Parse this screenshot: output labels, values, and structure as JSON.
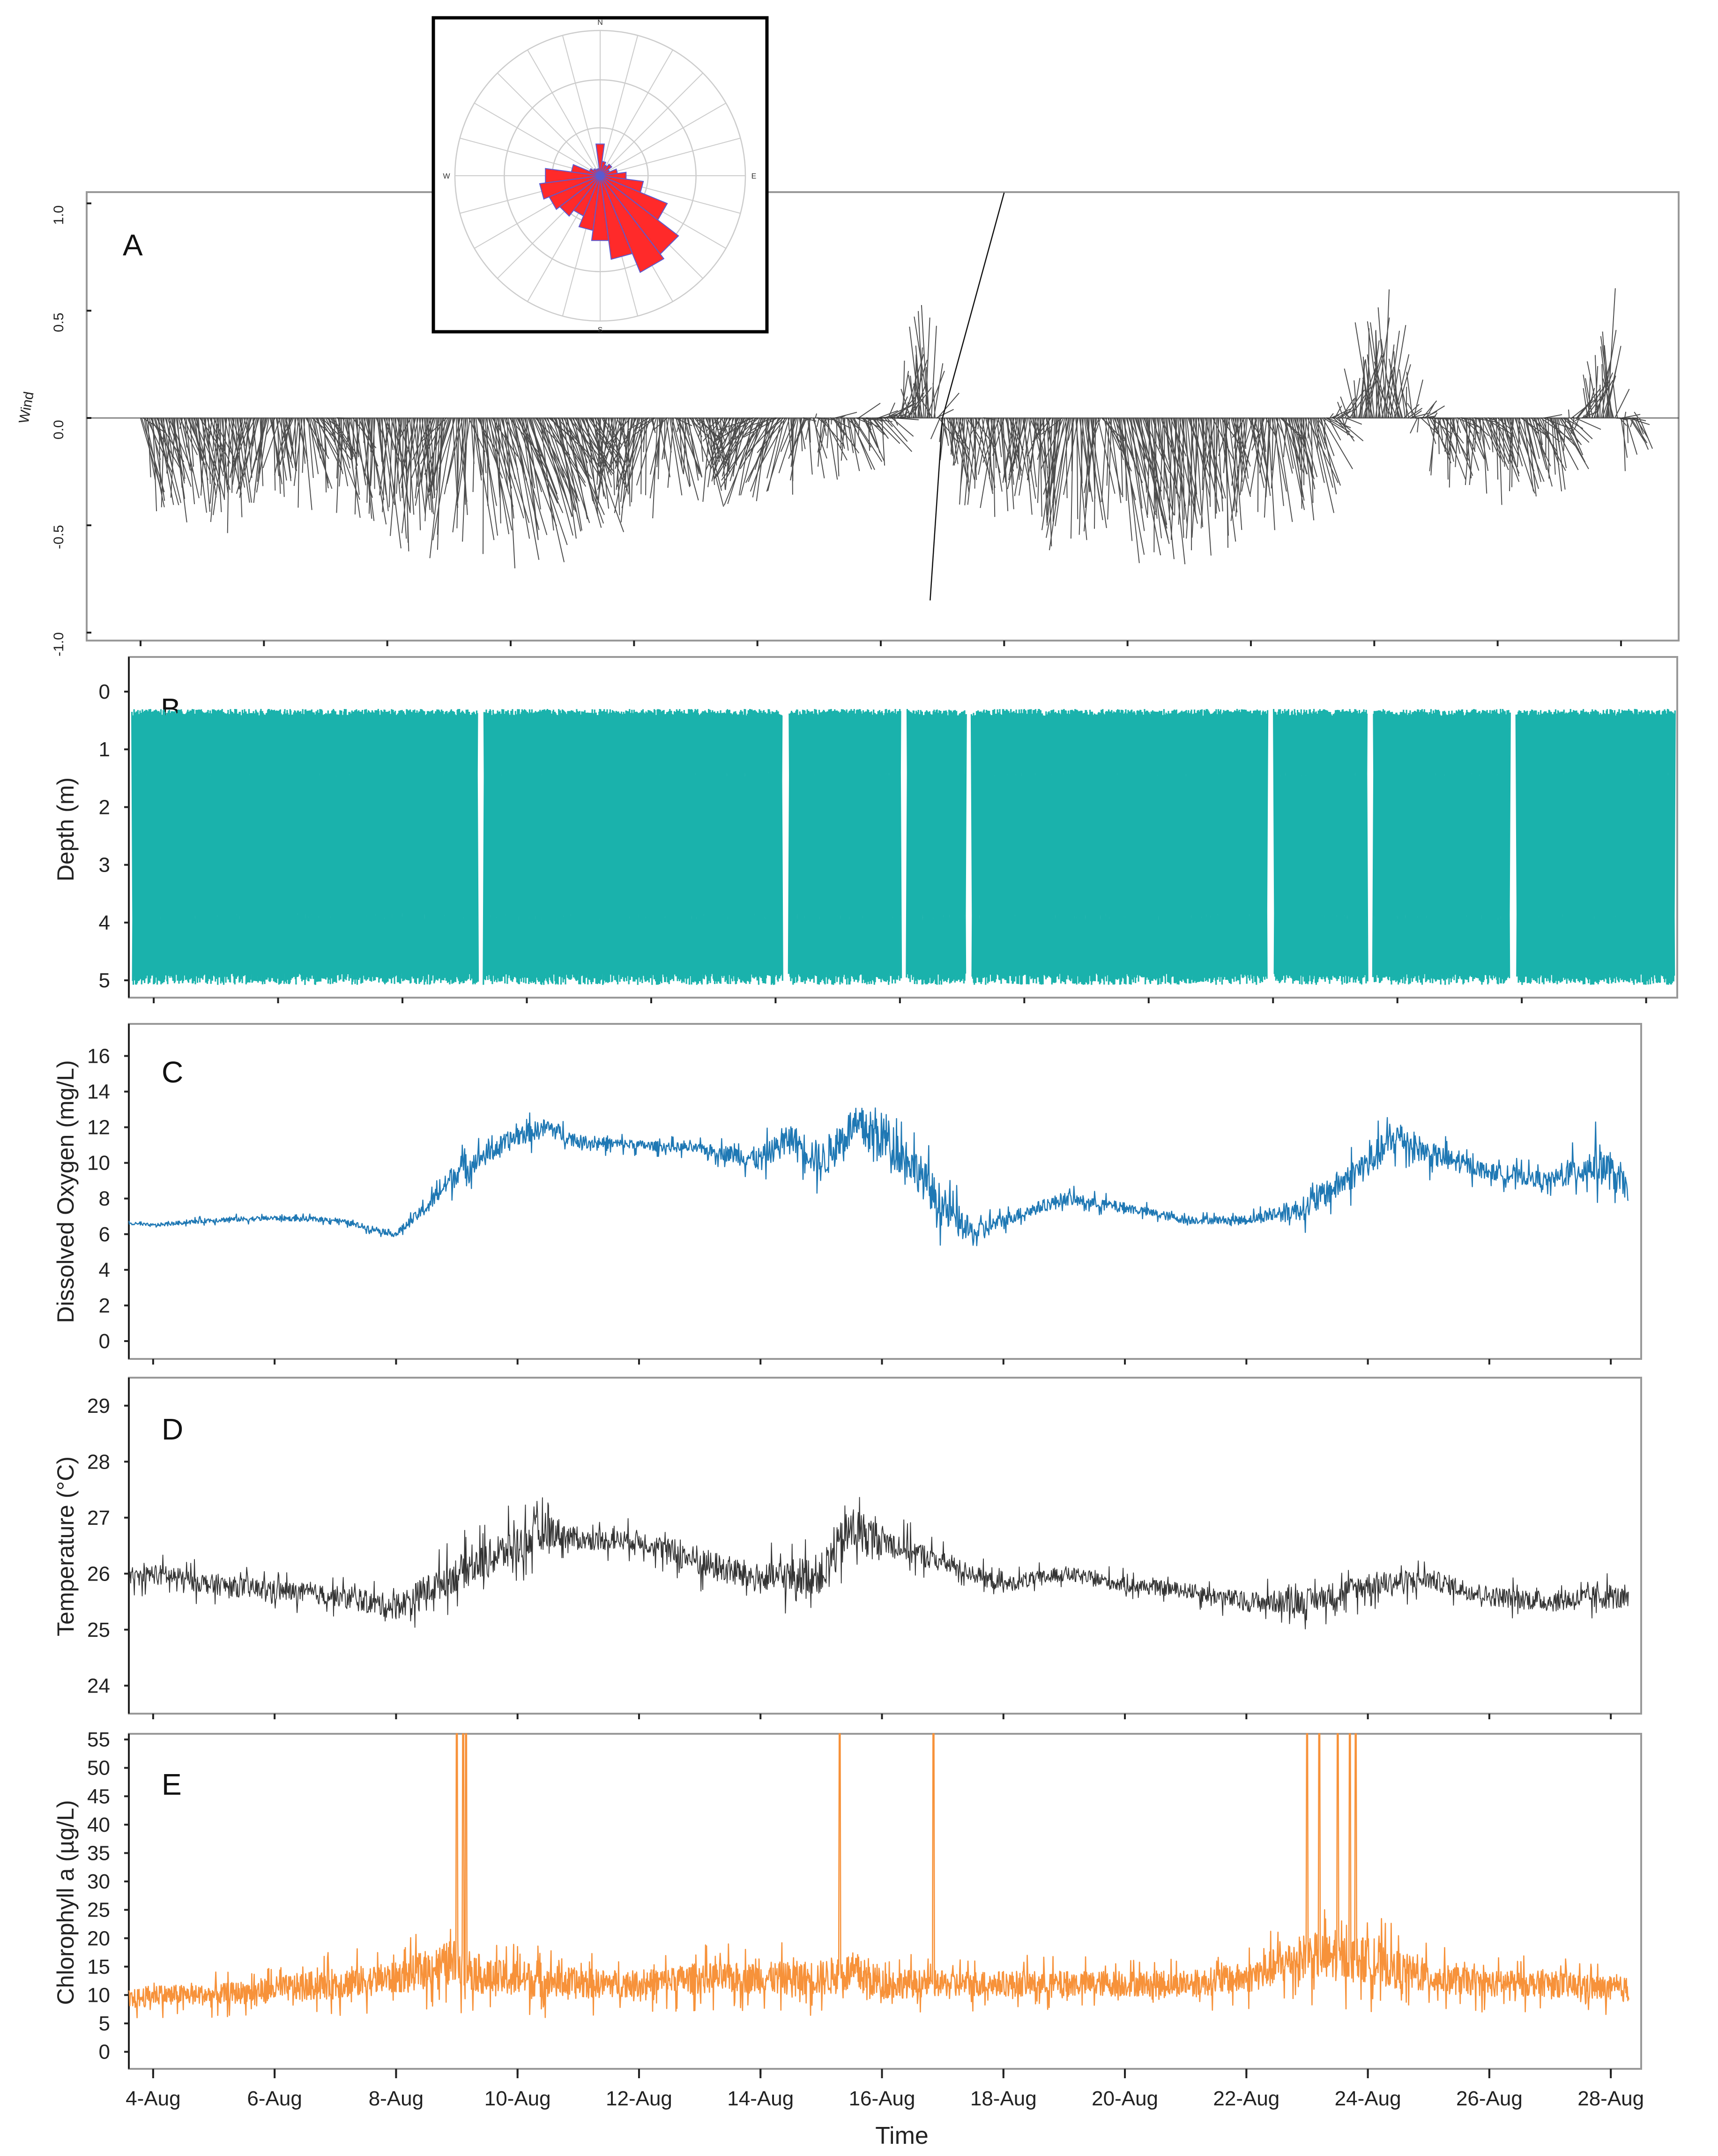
{
  "colors": {
    "depth": "#1ab2ac",
    "oxygen": "#1f78b4",
    "temperature": "#333333",
    "chlorophyll": "#f7923a",
    "wind": "#111111",
    "rose_fill": "#ff2a2a",
    "rose_edge": "#5a5ad0"
  },
  "x_axis": {
    "label": "Time",
    "ticks": [
      "4-Aug",
      "6-Aug",
      "8-Aug",
      "10-Aug",
      "12-Aug",
      "14-Aug",
      "16-Aug",
      "18-Aug",
      "20-Aug",
      "22-Aug",
      "24-Aug",
      "26-Aug",
      "28-Aug"
    ],
    "tick_days": [
      4,
      6,
      8,
      10,
      12,
      14,
      16,
      18,
      20,
      22,
      24,
      26,
      28
    ],
    "range_days": [
      3.6,
      28.5
    ]
  },
  "chart_data": [
    {
      "panel": "A",
      "type": "vector",
      "title": "",
      "ylabel": "Wind",
      "ylim": [
        -1.0,
        1.0
      ],
      "yticks": [
        -1.0,
        -0.5,
        0.0,
        0.5,
        1.0
      ],
      "ytick_labels": [
        "-1.0",
        "-0.5",
        "0.0",
        "0.5",
        "1.0"
      ],
      "x": [
        4,
        5,
        6,
        7,
        8,
        9,
        10,
        11,
        12,
        13,
        14,
        15,
        16,
        16.8,
        17,
        18,
        19,
        20,
        21,
        22,
        23,
        24,
        24.2,
        25,
        26,
        27,
        27.8,
        28,
        28.3
      ],
      "u": [
        0.1,
        0.05,
        -0.05,
        0.1,
        0.0,
        -0.05,
        0.15,
        0.2,
        -0.1,
        0.1,
        -0.2,
        0.05,
        0.1,
        0.0,
        0.05,
        0.0,
        -0.05,
        0.1,
        0.05,
        0.0,
        0.1,
        0.0,
        0.0,
        0.05,
        0.05,
        0.1,
        0.0,
        0.05,
        0.05
      ],
      "v": [
        -0.3,
        -0.35,
        -0.3,
        -0.25,
        -0.4,
        -0.45,
        -0.5,
        -0.4,
        -0.3,
        -0.25,
        -0.3,
        -0.15,
        -0.1,
        0.45,
        -0.2,
        -0.35,
        -0.4,
        -0.45,
        -0.5,
        -0.35,
        -0.3,
        0.4,
        0.45,
        -0.2,
        -0.25,
        -0.2,
        0.45,
        -0.15,
        -0.1
      ],
      "extremes": {
        "max": 1.05,
        "min": -0.85
      },
      "inset": {
        "type": "wind-rose",
        "directions": [
          "N",
          "E",
          "S",
          "W"
        ],
        "sectors_deg": [
          0,
          15,
          30,
          45,
          60,
          75,
          90,
          105,
          120,
          135,
          150,
          165,
          180,
          195,
          210,
          225,
          240,
          255,
          270,
          285,
          300,
          315,
          330,
          345
        ],
        "sector_values": [
          0.22,
          0.1,
          0.08,
          0.1,
          0.07,
          0.12,
          0.18,
          0.3,
          0.5,
          0.68,
          0.72,
          0.58,
          0.45,
          0.38,
          0.3,
          0.35,
          0.38,
          0.42,
          0.38,
          0.2,
          0.08,
          0.06,
          0.05,
          0.05
        ]
      }
    },
    {
      "panel": "B",
      "type": "line",
      "ylabel": "Depth (m)",
      "ylim": [
        5.3,
        -0.6
      ],
      "yticks": [
        0,
        1,
        2,
        3,
        4,
        5
      ],
      "ytick_labels": [
        "0",
        "1",
        "2",
        "3",
        "4",
        "5"
      ],
      "series": [
        {
          "name": "Depth profile",
          "range_min": 0.35,
          "range_max": 5.0,
          "gaps_days": [
            [
              9.2,
              9.3
            ],
            [
              14.1,
              14.2
            ],
            [
              16.0,
              16.1
            ],
            [
              17.05,
              17.15
            ],
            [
              21.9,
              22.0
            ],
            [
              23.5,
              23.6
            ],
            [
              25.8,
              25.9
            ]
          ]
        }
      ]
    },
    {
      "panel": "C",
      "type": "line",
      "ylabel": "Dissolved Oxygen (mg/L)",
      "ylim": [
        -1,
        17.8
      ],
      "yticks": [
        0,
        2,
        4,
        6,
        8,
        10,
        12,
        14,
        16
      ],
      "ytick_labels": [
        "0",
        "2",
        "4",
        "6",
        "8",
        "10",
        "12",
        "14",
        "16"
      ],
      "x": [
        3.6,
        4,
        5,
        6,
        7,
        8,
        8.5,
        9,
        10,
        10.5,
        11,
        12,
        13,
        14,
        14.5,
        15,
        15.5,
        16,
        16.5,
        17,
        17.5,
        18,
        19,
        20,
        21,
        22,
        23,
        24,
        24.5,
        25,
        26,
        27,
        27.8,
        28.3
      ],
      "values": [
        6.6,
        6.5,
        6.8,
        6.9,
        6.8,
        6.0,
        7.5,
        9.5,
        11.5,
        12.0,
        11.2,
        11.0,
        10.8,
        10.2,
        11.5,
        10.0,
        12.0,
        11.5,
        10.0,
        7.5,
        6.0,
        6.8,
        8.0,
        7.5,
        6.8,
        6.8,
        7.5,
        10.0,
        11.5,
        10.5,
        9.5,
        9.0,
        10.0,
        8.5
      ],
      "noise": [
        0.2,
        0.2,
        0.3,
        0.3,
        0.3,
        0.4,
        0.8,
        1.5,
        1.2,
        1.2,
        0.8,
        0.6,
        0.6,
        1.5,
        1.5,
        2.5,
        2.5,
        3.0,
        2.5,
        2.5,
        1.5,
        0.8,
        0.8,
        0.6,
        0.5,
        0.5,
        1.5,
        2.0,
        2.0,
        1.5,
        1.0,
        1.0,
        2.5,
        1.5
      ]
    },
    {
      "panel": "D",
      "type": "line",
      "ylabel": "Temperature (°C)",
      "ylim": [
        23.5,
        29.5
      ],
      "yticks": [
        24,
        25,
        26,
        27,
        28,
        29
      ],
      "ytick_labels": [
        "24",
        "25",
        "26",
        "27",
        "28",
        "29"
      ],
      "x": [
        3.6,
        4,
        5,
        6,
        7,
        8,
        9,
        10,
        10.5,
        11,
        12,
        13,
        14,
        15,
        15.5,
        16,
        17,
        18,
        19,
        20,
        21,
        22,
        23,
        24,
        25,
        26,
        27,
        28,
        28.3
      ],
      "values": [
        25.9,
        26.0,
        25.8,
        25.7,
        25.6,
        25.4,
        26.0,
        26.5,
        26.8,
        26.6,
        26.6,
        26.2,
        25.9,
        26.0,
        26.8,
        26.6,
        26.2,
        25.8,
        26.0,
        25.8,
        25.7,
        25.5,
        25.5,
        25.8,
        25.9,
        25.6,
        25.5,
        25.6,
        25.5
      ],
      "noise": [
        0.3,
        0.4,
        0.4,
        0.4,
        0.4,
        0.5,
        0.7,
        0.8,
        0.7,
        0.4,
        0.4,
        0.6,
        0.6,
        0.8,
        1.0,
        0.6,
        0.4,
        0.3,
        0.3,
        0.3,
        0.3,
        0.4,
        0.5,
        0.5,
        0.4,
        0.4,
        0.4,
        0.5,
        0.4
      ]
    },
    {
      "panel": "E",
      "type": "line",
      "ylabel": "Chlorophyll a (µg/L)",
      "ylim": [
        -3,
        56
      ],
      "yticks": [
        0,
        5,
        10,
        15,
        20,
        25,
        30,
        35,
        40,
        45,
        50,
        55
      ],
      "ytick_labels": [
        "0",
        "5",
        "10",
        "15",
        "20",
        "25",
        "30",
        "35",
        "40",
        "45",
        "50",
        "55"
      ],
      "x": [
        3.6,
        4,
        5,
        6,
        7,
        8,
        9,
        9.5,
        10,
        11,
        12,
        13,
        14,
        15,
        15.5,
        16,
        17,
        18,
        19,
        20,
        21,
        22,
        23,
        24,
        25,
        26,
        27,
        28,
        28.3
      ],
      "values": [
        9,
        10,
        10,
        11,
        12,
        13,
        16,
        13,
        13,
        12,
        12,
        13,
        13,
        13,
        14,
        12,
        12,
        12,
        12,
        12,
        12,
        13,
        17,
        16,
        13,
        12,
        12,
        11,
        11
      ],
      "noise": [
        4,
        4,
        4,
        5,
        6,
        6,
        9,
        7,
        7,
        6,
        5,
        6,
        6,
        7,
        8,
        6,
        5,
        5,
        5,
        5,
        5,
        6,
        9,
        9,
        6,
        5,
        5,
        5,
        5
      ],
      "spikes_days": [
        9.0,
        9.1,
        9.15,
        15.3,
        16.85,
        23.0,
        23.2,
        23.5,
        23.7,
        23.8
      ]
    }
  ],
  "panels": [
    {
      "letter": "A"
    },
    {
      "letter": "B"
    },
    {
      "letter": "C"
    },
    {
      "letter": "D"
    },
    {
      "letter": "E"
    }
  ]
}
